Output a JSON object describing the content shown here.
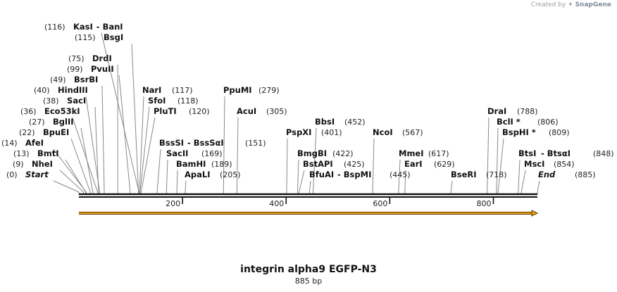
{
  "credit": {
    "prefix": "Created by",
    "brand": "SnapGene"
  },
  "map": {
    "title": "integrin alpha9 EGFP-N3",
    "length_label": "885 bp",
    "length_bp": 885,
    "feature": {
      "name": "feature-arrow",
      "start": 0,
      "end": 885,
      "color": "#f0a30a"
    },
    "ticks": [
      {
        "bp": 200,
        "label": "200"
      },
      {
        "bp": 400,
        "label": "400"
      },
      {
        "bp": 600,
        "label": "600"
      },
      {
        "bp": 800,
        "label": "800"
      }
    ],
    "sites": [
      {
        "pos": "(0)",
        "name": "Start",
        "bp": 0,
        "italic": true
      },
      {
        "pos": "(9)",
        "name": "NheI",
        "bp": 9
      },
      {
        "pos": "(13)",
        "name": "BmtI",
        "bp": 13
      },
      {
        "pos": "(14)",
        "name": "AfeI",
        "bp": 14
      },
      {
        "pos": "(22)",
        "name": "BpuEI",
        "bp": 22
      },
      {
        "pos": "(27)",
        "name": "BglII",
        "bp": 27
      },
      {
        "pos": "(36)",
        "name": "Eco53kI",
        "bp": 36
      },
      {
        "pos": "(38)",
        "name": "SacI",
        "bp": 38
      },
      {
        "pos": "(40)",
        "name": "HindIII",
        "bp": 40
      },
      {
        "pos": "(49)",
        "name": "BsrBI",
        "bp": 49
      },
      {
        "pos": "(75)",
        "name": "DrdI",
        "bp": 75
      },
      {
        "pos": "(99)",
        "name": "PvuII",
        "bp": 99
      },
      {
        "pos": "(115)",
        "name": "BsgI",
        "bp": 115
      },
      {
        "pos": "(116)",
        "name": "KasI",
        "bp": 116,
        "extra": "BanI"
      },
      {
        "pos": "(117)",
        "name": "NarI",
        "bp": 117
      },
      {
        "pos": "(118)",
        "name": "SfoI",
        "bp": 118
      },
      {
        "pos": "(120)",
        "name": "PluTI",
        "bp": 120
      },
      {
        "pos": "(151)",
        "name": "BssSI",
        "bp": 151,
        "extra": "BssSαI"
      },
      {
        "pos": "(169)",
        "name": "SacII",
        "bp": 169
      },
      {
        "pos": "(189)",
        "name": "BamHI",
        "bp": 189
      },
      {
        "pos": "(205)",
        "name": "ApaLI",
        "bp": 205
      },
      {
        "pos": "(279)",
        "name": "PpuMI",
        "bp": 279
      },
      {
        "pos": "(305)",
        "name": "AcuI",
        "bp": 305
      },
      {
        "pos": "(401)",
        "name": "PspXI",
        "bp": 401
      },
      {
        "pos": "(422)",
        "name": "BmgBI",
        "bp": 422
      },
      {
        "pos": "(425)",
        "name": "BstAPI",
        "bp": 425
      },
      {
        "pos": "(445)",
        "name": "BfuAI",
        "bp": 445,
        "extra": "BspMI"
      },
      {
        "pos": "(452)",
        "name": "BbsI",
        "bp": 452
      },
      {
        "pos": "(567)",
        "name": "NcoI",
        "bp": 567
      },
      {
        "pos": "(617)",
        "name": "MmeI",
        "bp": 617
      },
      {
        "pos": "(629)",
        "name": "EarI",
        "bp": 629
      },
      {
        "pos": "(718)",
        "name": "BseRI",
        "bp": 718
      },
      {
        "pos": "(788)",
        "name": "DraI",
        "bp": 788
      },
      {
        "pos": "(806)",
        "name": "BclI *",
        "bp": 806
      },
      {
        "pos": "(809)",
        "name": "BspHI *",
        "bp": 809
      },
      {
        "pos": "(848)",
        "name": "BtsI",
        "bp": 848,
        "extra": "BtsαI"
      },
      {
        "pos": "(854)",
        "name": "MscI",
        "bp": 854
      },
      {
        "pos": "(885)",
        "name": "End",
        "bp": 885,
        "italic": true
      }
    ]
  }
}
